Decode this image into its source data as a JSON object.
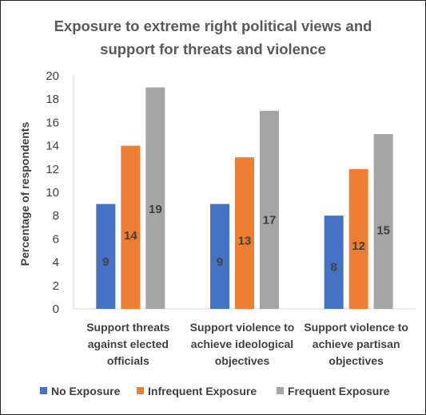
{
  "chart_data": {
    "type": "bar",
    "title_lines": [
      "Exposure to extreme right political views and",
      "support for threats and violence"
    ],
    "ylabel": "Percentage of respondents",
    "ylim": [
      0,
      20
    ],
    "yticks": [
      0,
      2,
      4,
      6,
      8,
      10,
      12,
      14,
      16,
      18,
      20
    ],
    "categories": [
      [
        "Support threats",
        "against elected",
        "officials"
      ],
      [
        "Support violence to",
        "achieve ideological",
        "objectives"
      ],
      [
        "Support violence to",
        "achieve partisan",
        "objectives"
      ]
    ],
    "series": [
      {
        "name": "No Exposure",
        "color": "#4472C4",
        "values": [
          9,
          9,
          8
        ]
      },
      {
        "name": "Infrequent Exposure",
        "color": "#ED7D31",
        "values": [
          14,
          13,
          12
        ]
      },
      {
        "name": "Frequent Exposure",
        "color": "#A5A5A5",
        "values": [
          19,
          17,
          15
        ]
      }
    ],
    "grid": false,
    "legend_position": "bottom"
  }
}
